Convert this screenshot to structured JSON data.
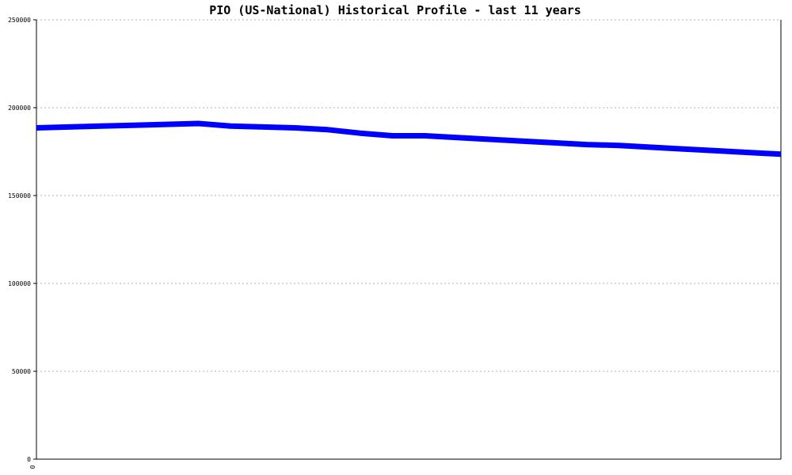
{
  "chart_data": {
    "type": "line",
    "title": "PIO (US-National) Historical Profile - last 11 years",
    "xlabel": "",
    "ylabel": "",
    "x_tick_labels": [
      "0"
    ],
    "y_ticks": [
      0,
      50000,
      100000,
      150000,
      200000,
      250000
    ],
    "y_tick_labels": [
      "0",
      "50000",
      "100000",
      "150000",
      "200000",
      "250000"
    ],
    "ylim": [
      0,
      250000
    ],
    "grid": true,
    "legend": "none",
    "series": [
      {
        "color": "#0000ff",
        "x": [
          0,
          1,
          2,
          3,
          4,
          5,
          6,
          7,
          8,
          9,
          10,
          11,
          12,
          13,
          14,
          15,
          16,
          17,
          18,
          19,
          20,
          21,
          22,
          23
        ],
        "values": [
          188500,
          189000,
          189500,
          190000,
          190500,
          191000,
          189500,
          189000,
          188500,
          187500,
          185500,
          184000,
          184000,
          183000,
          182000,
          181000,
          180000,
          179000,
          178500,
          177500,
          176500,
          175500,
          174500,
          173500
        ]
      }
    ]
  }
}
